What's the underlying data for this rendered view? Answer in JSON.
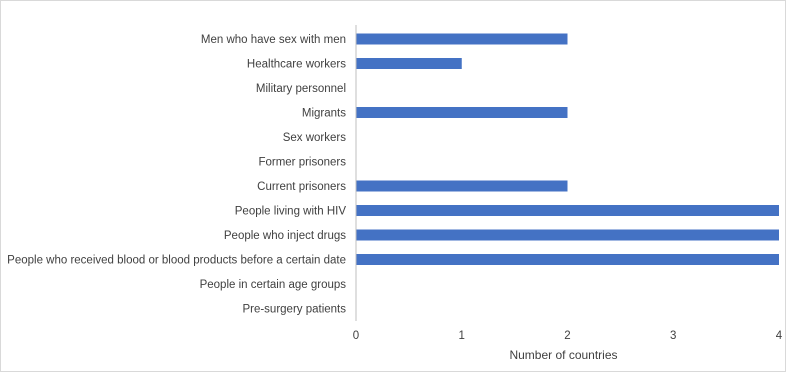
{
  "chart_data": {
    "type": "bar",
    "orientation": "horizontal",
    "categories": [
      "Men who have sex with men",
      "Healthcare workers",
      "Military personnel",
      "Migrants",
      "Sex workers",
      "Former prisoners",
      "Current prisoners",
      "People living with HIV",
      "People who inject drugs",
      "People who received blood or blood products before a certain date",
      "People in certain age groups",
      "Pre-surgery patients"
    ],
    "values": [
      2,
      1,
      0,
      2,
      0,
      0,
      2,
      4,
      4,
      4,
      0,
      0
    ],
    "xlabel": "Number of countries",
    "ylabel": "",
    "xlim": [
      0,
      4
    ],
    "xticks": [
      "0",
      "1",
      "2",
      "3",
      "4"
    ],
    "grid": false,
    "bar_color": "#4472C4"
  }
}
